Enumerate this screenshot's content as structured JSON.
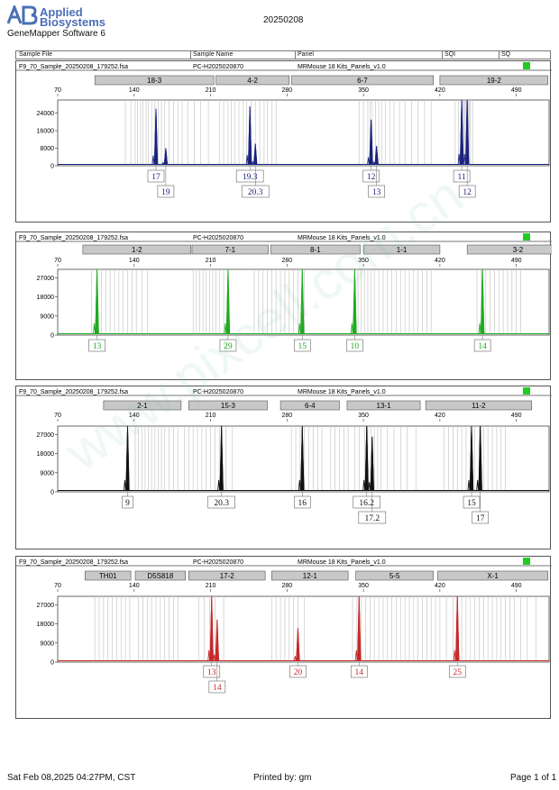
{
  "header": {
    "brand_line1": "Applied",
    "brand_line2": "Biosystems",
    "software": "GeneMapper Software 6",
    "report_date": "20250208"
  },
  "table_headers": {
    "sample_file": "Sample File",
    "sample_name": "Sample Name",
    "panel": "Panel",
    "sqi": "SQI",
    "sq": "SQ"
  },
  "footer": {
    "printed_at": "Sat Feb 08,2025 04:27PM, CST",
    "printed_by": "Printed by: gm",
    "page": "Page 1 of 1"
  },
  "watermark": "www.pixcell.com.cn",
  "colors": {
    "blue": "#1a237e",
    "green": "#1faa1f",
    "black": "#111111",
    "red": "#c62828",
    "quality_ok": "#22cc22",
    "bin_bar": "#c8c8c8"
  },
  "chart_data": [
    {
      "type": "line",
      "sample_file": "F9_70_Sample_20250208_179252.fsa",
      "sample_name": "PC-H2025020870",
      "panel": "MRMouse 18 Kits_Panels_v1.0",
      "color": "#1a237e",
      "x_ticks": [
        70,
        140,
        210,
        280,
        350,
        420,
        490
      ],
      "y_ticks": [
        0,
        8000,
        16000,
        24000
      ],
      "xlim": [
        70,
        520
      ],
      "ylim": [
        0,
        30000
      ],
      "markers": [
        {
          "label": "18-3",
          "start": 104,
          "end": 213
        },
        {
          "label": "4-2",
          "start": 215,
          "end": 282
        },
        {
          "label": "6-7",
          "start": 284,
          "end": 414
        },
        {
          "label": "19-2",
          "start": 420,
          "end": 519
        }
      ],
      "bins": [
        132,
        137,
        141,
        143,
        146,
        148,
        151,
        153,
        156,
        159,
        162,
        165,
        168,
        172,
        176,
        180,
        184,
        189,
        195,
        201,
        208,
        218,
        222,
        226,
        229,
        232,
        236,
        240,
        243,
        247,
        251,
        255,
        259,
        262,
        266,
        270,
        346,
        350,
        354,
        356,
        358,
        361,
        364,
        367,
        370,
        374,
        378,
        383,
        388,
        394,
        400,
        406,
        412,
        434,
        437,
        440,
        441,
        442,
        443,
        444,
        445,
        446,
        447,
        448,
        450
      ]
    },
    {
      "type": "line",
      "sample_file": "F9_70_Sample_20250208_179252.fsa",
      "sample_name": "PC-H2025020870",
      "panel": "MRMouse 18 Kits_Panels_v1.0",
      "color": "#1faa1f",
      "x_ticks": [
        70,
        140,
        210,
        280,
        350,
        420,
        490
      ],
      "y_ticks": [
        0,
        9000,
        18000,
        27000
      ],
      "xlim": [
        70,
        520
      ],
      "ylim": [
        0,
        31000
      ],
      "markers": [
        {
          "label": "1-2",
          "start": 93,
          "end": 192
        },
        {
          "label": "7-1",
          "start": 193,
          "end": 263
        },
        {
          "label": "8-1",
          "start": 265,
          "end": 347
        },
        {
          "label": "1-1",
          "start": 350,
          "end": 420
        },
        {
          "label": "3-2",
          "start": 445,
          "end": 538
        }
      ],
      "bins": [
        101,
        106,
        110,
        114,
        118,
        122,
        126,
        130,
        134,
        138,
        142,
        147,
        152,
        194,
        197,
        200,
        203,
        206,
        209,
        212,
        215,
        218,
        222,
        226,
        250,
        254,
        258,
        262,
        266,
        270,
        274,
        278,
        282,
        286,
        290,
        296,
        342,
        345,
        348,
        351,
        354,
        357,
        360,
        364,
        368,
        372,
        376,
        380,
        384,
        388,
        392,
        396,
        400,
        404,
        408,
        412,
        454,
        458,
        462,
        466,
        470,
        474,
        478,
        482,
        486,
        490,
        494
      ]
    },
    {
      "type": "line",
      "sample_file": "F9_70_Sample_20250208_179252.fsa",
      "sample_name": "PC-H2025020870",
      "panel": "MRMouse 18 Kits_Panels_v1.0",
      "color": "#111111",
      "x_ticks": [
        70,
        140,
        210,
        280,
        350,
        420,
        490
      ],
      "y_ticks": [
        0,
        9000,
        18000,
        27000
      ],
      "xlim": [
        70,
        520
      ],
      "ylim": [
        0,
        31000
      ],
      "markers": [
        {
          "label": "2-1",
          "start": 112,
          "end": 183
        },
        {
          "label": "15-3",
          "start": 190,
          "end": 262
        },
        {
          "label": "6-4",
          "start": 274,
          "end": 328
        },
        {
          "label": "13-1",
          "start": 335,
          "end": 402
        },
        {
          "label": "11-2",
          "start": 407,
          "end": 504
        }
      ],
      "bins": [
        141,
        144,
        147,
        150,
        153,
        156,
        159,
        162,
        165,
        168,
        172,
        176,
        180,
        186,
        190,
        194,
        198,
        202,
        206,
        210,
        214,
        218,
        224,
        230,
        284,
        288,
        292,
        296,
        300,
        304,
        308,
        312,
        320,
        324,
        328,
        332,
        336,
        342,
        346,
        351,
        354,
        357,
        360,
        363,
        366,
        372,
        378,
        384,
        390,
        398,
        424,
        428,
        432,
        436,
        440,
        444,
        448,
        452,
        456,
        460,
        464,
        468,
        472,
        476,
        480
      ]
    },
    {
      "type": "line",
      "sample_file": "F9_70_Sample_20250208_179252.fsa",
      "sample_name": "PC-H2025020870",
      "panel": "MRMouse 18 Kits_Panels_v1.0",
      "color": "#c62828",
      "x_ticks": [
        70,
        140,
        210,
        280,
        350,
        420,
        490
      ],
      "y_ticks": [
        0,
        9000,
        18000,
        27000
      ],
      "xlim": [
        70,
        520
      ],
      "ylim": [
        0,
        31000
      ],
      "markers": [
        {
          "label": "TH01",
          "start": 95,
          "end": 137
        },
        {
          "label": "D5S818",
          "start": 141,
          "end": 187
        },
        {
          "label": "17-2",
          "start": 190,
          "end": 260
        },
        {
          "label": "12-1",
          "start": 266,
          "end": 336
        },
        {
          "label": "5-5",
          "start": 343,
          "end": 414
        },
        {
          "label": "X-1",
          "start": 418,
          "end": 519
        }
      ],
      "bins": [
        104,
        108,
        112,
        116,
        120,
        124,
        128,
        132,
        136,
        144,
        148,
        152,
        156,
        160,
        164,
        168,
        172,
        176,
        180,
        199,
        204,
        209,
        214,
        222,
        266,
        270,
        274,
        278,
        282,
        286,
        290,
        296,
        340,
        344,
        348,
        352,
        356,
        360,
        364,
        368,
        372,
        376,
        380,
        384,
        388,
        392,
        396,
        400,
        404,
        408,
        412,
        416,
        420,
        426,
        432,
        436,
        440,
        444,
        448,
        452,
        456,
        460,
        464,
        468,
        472,
        476,
        480,
        484,
        488,
        494,
        500,
        508
      ]
    }
  ],
  "peaks": [
    [
      {
        "x": 160,
        "h": 26000,
        "label": "17",
        "row": 1
      },
      {
        "x": 169,
        "h": 8000,
        "label": "19",
        "row": 2
      },
      {
        "x": 246,
        "h": 27000,
        "label": "19.3",
        "row": 1
      },
      {
        "x": 251,
        "h": 10000,
        "label": "20.3",
        "row": 2
      },
      {
        "x": 357,
        "h": 21000,
        "label": "12",
        "row": 1
      },
      {
        "x": 362,
        "h": 9000,
        "label": "13",
        "row": 2
      },
      {
        "x": 440,
        "h": 30000,
        "label": "11",
        "row": 1
      },
      {
        "x": 445,
        "h": 30000,
        "label": "12",
        "row": 2
      }
    ],
    [
      {
        "x": 106,
        "h": 31000,
        "label": "13",
        "row": 1
      },
      {
        "x": 226,
        "h": 31000,
        "label": "29",
        "row": 1
      },
      {
        "x": 294,
        "h": 31000,
        "label": "15",
        "row": 1
      },
      {
        "x": 342,
        "h": 31000,
        "label": "10",
        "row": 1
      },
      {
        "x": 459,
        "h": 31000,
        "label": "14",
        "row": 1
      }
    ],
    [
      {
        "x": 134,
        "h": 31000,
        "label": "9",
        "row": 1
      },
      {
        "x": 220,
        "h": 31000,
        "label": "20.3",
        "row": 1
      },
      {
        "x": 294,
        "h": 31000,
        "label": "16",
        "row": 1
      },
      {
        "x": 353,
        "h": 31000,
        "label": "16.2",
        "row": 1
      },
      {
        "x": 358,
        "h": 26000,
        "label": "17.2",
        "row": 2
      },
      {
        "x": 449,
        "h": 31000,
        "label": "15",
        "row": 1
      },
      {
        "x": 457,
        "h": 31000,
        "label": "17",
        "row": 2
      }
    ],
    [
      {
        "x": 211,
        "h": 31000,
        "label": "13",
        "row": 1
      },
      {
        "x": 216,
        "h": 20000,
        "label": "14",
        "row": 2
      },
      {
        "x": 290,
        "h": 16000,
        "label": "20",
        "row": 1
      },
      {
        "x": 346,
        "h": 31000,
        "label": "14",
        "row": 1
      },
      {
        "x": 436,
        "h": 31000,
        "label": "25",
        "row": 1
      }
    ]
  ]
}
